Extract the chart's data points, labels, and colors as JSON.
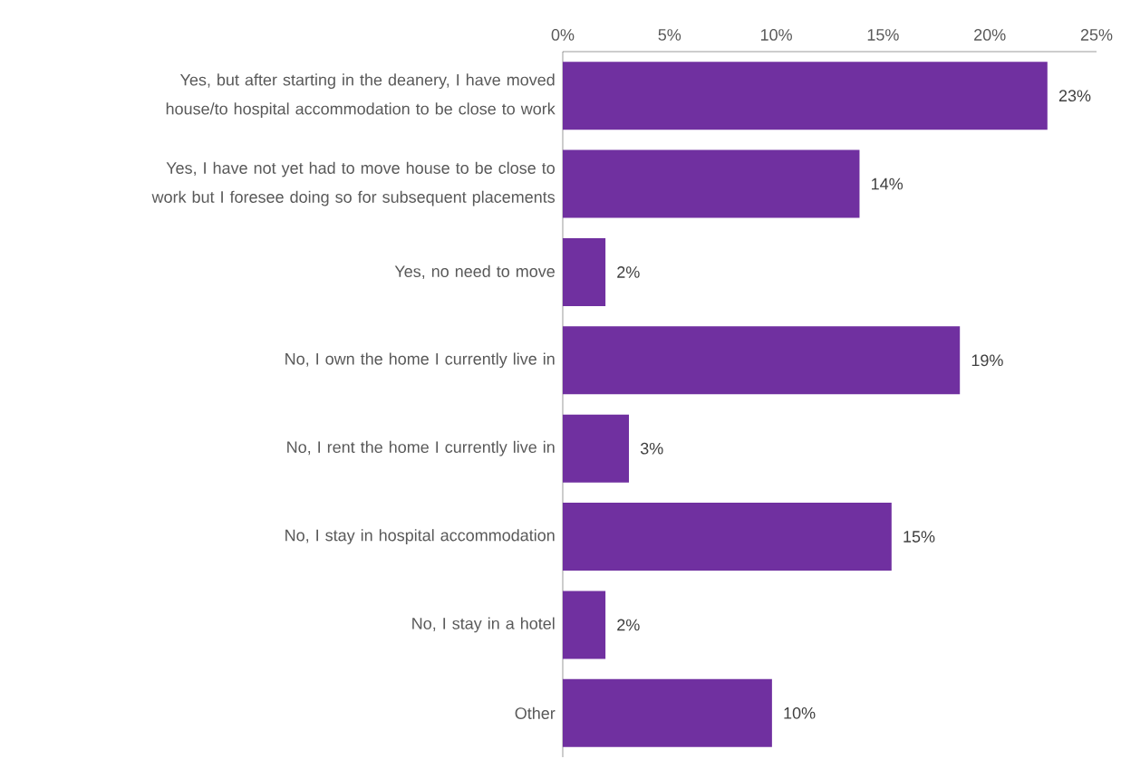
{
  "chart_data": {
    "type": "bar",
    "orientation": "horizontal",
    "color": "#7030a0",
    "categories": [
      "Yes, but after starting in the deanery, I have moved house/to hospital accommodation to be close to work",
      "Yes, I have not yet had to move house to be close to work but I foresee doing so for subsequent placements",
      "Yes, no need to move",
      "No, I own the home I currently live in",
      "No, I rent the home I currently live in",
      "No, I stay in hospital accommodation",
      "No, I stay in a hotel",
      "Other"
    ],
    "values": [
      22.7,
      13.9,
      2.0,
      18.6,
      3.1,
      15.4,
      2.0,
      9.8
    ],
    "value_labels": [
      "23%",
      "14%",
      "2%",
      "19%",
      "3%",
      "15%",
      "2%",
      "10%"
    ],
    "xlim": [
      0,
      25
    ],
    "xticks": [
      {
        "value": 0,
        "label": "0%"
      },
      {
        "value": 5,
        "label": "5%"
      },
      {
        "value": 10,
        "label": "10%"
      },
      {
        "value": 15,
        "label": "15%"
      },
      {
        "value": 20,
        "label": "20%"
      },
      {
        "value": 25,
        "label": "25%"
      }
    ]
  }
}
